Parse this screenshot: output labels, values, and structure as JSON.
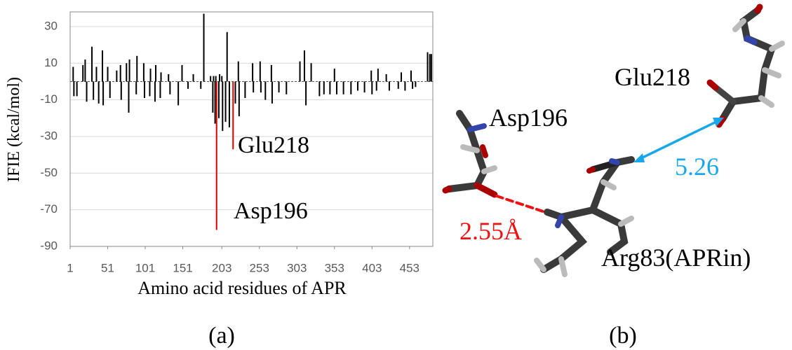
{
  "chart_data": {
    "type": "bar",
    "ylabel": "IFIE (kcal/mol)",
    "xlabel": "Amino acid residues of APR",
    "xlim": [
      1,
      484
    ],
    "ylim": [
      -90,
      38
    ],
    "xticks": [
      1,
      51,
      101,
      151,
      203,
      253,
      303,
      353,
      403,
      453
    ],
    "yticks": [
      30,
      10,
      -10,
      -30,
      -50,
      -70,
      -90
    ],
    "grid": true,
    "series": [
      {
        "color": "#000000",
        "x": [
          5,
          18,
          21,
          30,
          36,
          44,
          51,
          63,
          68,
          76,
          80,
          90,
          99,
          108,
          115,
          122,
          132,
          150,
          165,
          179,
          188,
          192,
          195,
          200,
          203,
          210,
          225,
          244,
          254,
          269,
          307,
          313,
          322,
          353,
          402,
          411,
          422,
          442,
          455,
          477,
          480,
          482,
          6,
          10,
          23,
          32,
          39,
          45,
          54,
          69,
          79,
          89,
          100,
          107,
          114,
          121,
          134,
          145,
          158,
          175,
          191,
          194,
          199,
          204,
          208,
          213,
          221,
          226,
          234,
          245,
          255,
          261,
          270,
          279,
          289,
          315,
          333,
          339,
          347,
          356,
          365,
          375,
          384,
          393,
          403,
          409,
          426,
          438,
          447,
          457,
          461
        ],
        "values": [
          8,
          9,
          12,
          19,
          8,
          17,
          8,
          6,
          9,
          10,
          12,
          14,
          10,
          7,
          9,
          5,
          4,
          9,
          4,
          37,
          3,
          3,
          3,
          4,
          3,
          27,
          11,
          10,
          11,
          9,
          11,
          17,
          10,
          7,
          6,
          7,
          4,
          5,
          6,
          16,
          15,
          15,
          -8,
          -8,
          -11,
          -10,
          -12,
          -13,
          -9,
          -10,
          -17,
          -7,
          -9,
          -8,
          -11,
          -9,
          -7,
          -13,
          -4,
          -4,
          -17,
          -23,
          -20,
          -27,
          -22,
          -25,
          -12,
          -19,
          -9,
          -6,
          -6,
          -10,
          -12,
          -6,
          -7,
          -13,
          -8,
          -7,
          -7,
          -7,
          -7,
          -7,
          -5,
          -6,
          -7,
          -5,
          -5,
          -4,
          -5,
          -4,
          -3
        ]
      },
      {
        "color": "#e00000",
        "x": [
          196,
          218
        ],
        "values": [
          -81,
          -37
        ]
      }
    ],
    "annotations": [
      {
        "text": "Glu218"
      },
      {
        "text": "Asp196"
      }
    ]
  },
  "panels": {
    "a": "(a)",
    "b": "(b)"
  },
  "figure_b": {
    "labels": [
      "Glu218",
      "Asp196",
      "5.26",
      "2.55Å",
      "Arg83(APRin)"
    ]
  }
}
